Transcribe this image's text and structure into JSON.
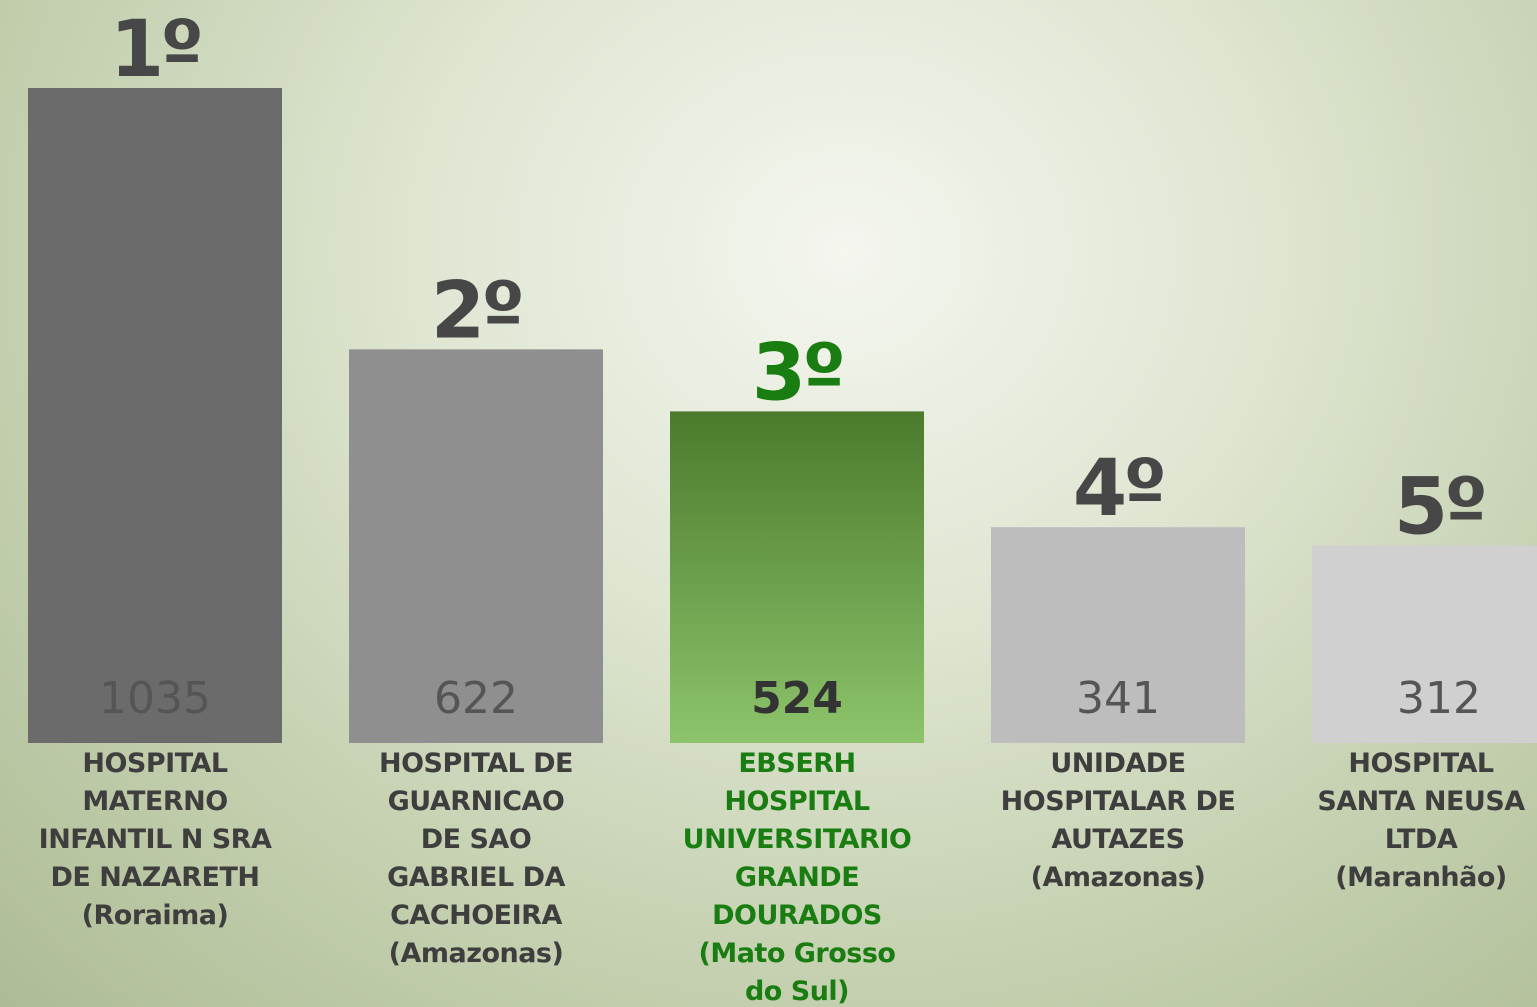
{
  "chart_data": {
    "type": "bar",
    "categories": [
      "HOSPITAL\nMATERNO\nINFANTIL N SRA\nDE NAZARETH\n(Roraima)",
      "HOSPITAL DE\nGUARNICAO\nDE SAO\nGABRIEL DA\nCACHOEIRA\n(Amazonas)",
      "EBSERH\nHOSPITAL\nUNIVERSITARIO\nGRANDE\nDOURADOS\n(Mato Grosso\ndo Sul)",
      "UNIDADE\nHOSPITALAR DE\nAUTAZES\n(Amazonas)",
      "HOSPITAL\nSANTA NEUSA\nLTDA\n(Maranhão)"
    ],
    "values": [
      1035,
      622,
      524,
      341,
      312
    ],
    "ranks": [
      "1º",
      "2º",
      "3º",
      "4º",
      "5º"
    ],
    "colors": [
      "#6b6b6b",
      "#8f8f8f",
      [
        "#4b7a2c",
        "#8dc46b"
      ],
      "#bdbdbd",
      "#d0d0d0"
    ],
    "rank_colors": [
      "#474747",
      "#474747",
      "#1a7d12",
      "#474747",
      "#474747"
    ],
    "label_colors": [
      "#3e3e3e",
      "#3e3e3e",
      "#1a7d12",
      "#3e3e3e",
      "#3e3e3e"
    ]
  }
}
